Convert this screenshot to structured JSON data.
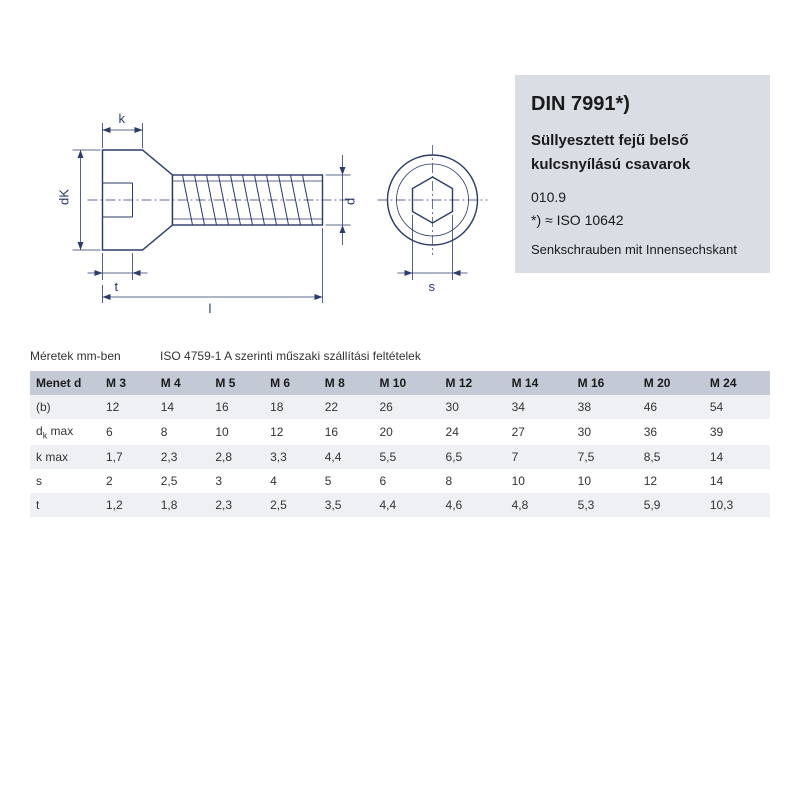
{
  "info": {
    "title": "DIN 7991*)",
    "desc": "Süllyesztett fejű belső kulcsnyílású csavarok",
    "grade": "010.9",
    "note": "*) ≈ ISO 10642",
    "sub": "Senkschrauben mit Innensechs­kant"
  },
  "caption": {
    "units": "Méretek mm-ben",
    "std": "ISO 4759-1 A szerinti műszaki szállítási feltételek"
  },
  "table": {
    "header_first": "Menet d",
    "columns": [
      "M 3",
      "M 4",
      "M 5",
      "M 6",
      "M 8",
      "M 10",
      "M 12",
      "M 14",
      "M 16",
      "M 20",
      "M 24"
    ],
    "rows": [
      {
        "label": "(b)",
        "vals": [
          "12",
          "14",
          "16",
          "18",
          "22",
          "26",
          "30",
          "34",
          "38",
          "46",
          "54"
        ]
      },
      {
        "label": "dk_max",
        "vals": [
          "6",
          "8",
          "10",
          "12",
          "16",
          "20",
          "24",
          "27",
          "30",
          "36",
          "39"
        ]
      },
      {
        "label": "k max",
        "vals": [
          "1,7",
          "2,3",
          "2,8",
          "3,3",
          "4,4",
          "5,5",
          "6,5",
          "7",
          "7,5",
          "8,5",
          "14"
        ]
      },
      {
        "label": "s",
        "vals": [
          "2",
          "2,5",
          "3",
          "4",
          "5",
          "6",
          "8",
          "10",
          "10",
          "12",
          "14"
        ]
      },
      {
        "label": "t",
        "vals": [
          "1,2",
          "1,8",
          "2,3",
          "2,5",
          "3,5",
          "4,4",
          "4,6",
          "4,8",
          "5,3",
          "5,9",
          "10,3"
        ]
      }
    ],
    "row_label_dk": "d<span class=\"sub\">k</span> max"
  },
  "diagram": {
    "stroke": "#2a3a6a",
    "labels": {
      "k": "k",
      "dk": "dK",
      "t": "t",
      "l": "l",
      "d": "d",
      "s": "s"
    },
    "label_fontsize": 13
  },
  "style": {
    "panel_bg": "#d9dde4",
    "thead_bg": "#c3cad5",
    "row_odd_bg": "#eef0f4",
    "row_even_bg": "#ffffff",
    "text_color": "#1a1a1a"
  }
}
